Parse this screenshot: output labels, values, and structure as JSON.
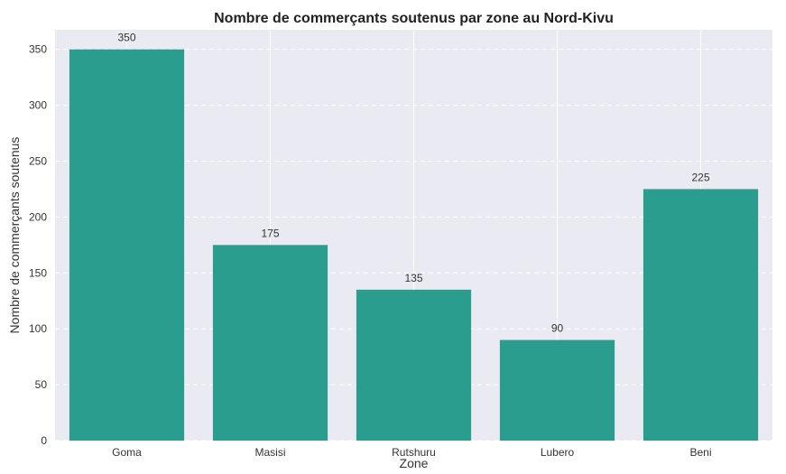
{
  "chart_data": {
    "type": "bar",
    "title": "Nombre de commerçants soutenus par zone au Nord-Kivu",
    "xlabel": "Zone",
    "ylabel": "Nombre de commerçants soutenus",
    "categories": [
      "Goma",
      "Masisi",
      "Rutshuru",
      "Lubero",
      "Beni"
    ],
    "values": [
      350,
      175,
      135,
      90,
      225
    ],
    "data_labels": [
      "350",
      "175",
      "135",
      "90",
      "225"
    ],
    "yticks": [
      0,
      50,
      100,
      150,
      200,
      250,
      300,
      350
    ],
    "ylim": [
      0,
      367.5
    ],
    "grid": true,
    "legend": false,
    "colors": {
      "bar": "#2a9d8f",
      "plot_background": "#eaeaf2",
      "grid": "#ffffff"
    }
  }
}
